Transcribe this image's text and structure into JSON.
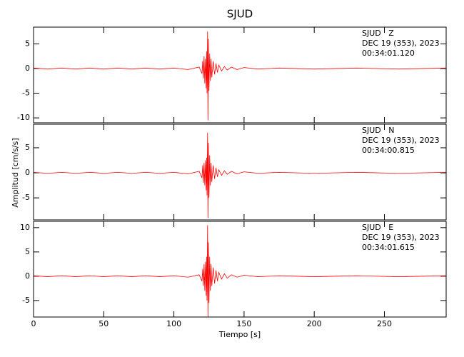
{
  "chart_data": [
    {
      "type": "line",
      "title": "SJUD",
      "annotations": [
        "SJUD   Z",
        "DEC 19 (353), 2023",
        "00:34:01.120"
      ],
      "x": [
        0,
        10,
        20,
        30,
        40,
        50,
        60,
        70,
        80,
        90,
        100,
        110,
        118,
        120,
        120.5,
        121,
        121.5,
        122,
        122.5,
        123,
        123.3,
        123.6,
        124,
        124.3,
        124.6,
        125,
        125.5,
        126,
        126.5,
        127,
        128,
        129,
        130,
        131,
        132,
        134,
        136,
        138,
        141,
        145,
        150,
        160,
        175,
        200,
        230,
        260,
        294
      ],
      "series": [
        {
          "color": "#ff0000",
          "values": [
            0.1,
            -0.1,
            0.1,
            -0.1,
            0.1,
            -0.1,
            0.1,
            -0.1,
            0.1,
            -0.1,
            0.1,
            -0.2,
            0.3,
            -1.0,
            1.5,
            -2.0,
            2.5,
            -3.0,
            2.0,
            -4.0,
            3.5,
            -5.0,
            7.5,
            -10.5,
            6.0,
            -4.5,
            3.0,
            -2.5,
            2.0,
            -1.8,
            1.5,
            -1.2,
            1.0,
            -0.8,
            0.7,
            -0.5,
            0.4,
            -0.3,
            0.3,
            -0.2,
            0.2,
            -0.1,
            0.1,
            -0.1,
            0.1,
            -0.1,
            0.1
          ]
        }
      ],
      "xlim": [
        0,
        294
      ],
      "xticks": [
        0,
        50,
        100,
        150,
        200,
        250
      ],
      "ylim": [
        -11,
        8.4
      ],
      "yticks": [
        -10,
        -5,
        0,
        5
      ]
    },
    {
      "type": "line",
      "ylabel": "Amplitud [cm/s/s]",
      "annotations": [
        "SJUD   N",
        "DEC 19 (353), 2023",
        "00:34:00.815"
      ],
      "x": [
        0,
        10,
        20,
        30,
        40,
        50,
        60,
        70,
        80,
        90,
        100,
        110,
        118,
        120,
        120.5,
        121,
        121.5,
        122,
        122.5,
        123,
        123.3,
        123.6,
        124,
        124.3,
        124.6,
        125,
        125.5,
        126,
        126.5,
        127,
        128,
        129,
        130,
        131,
        132,
        134,
        136,
        138,
        141,
        145,
        150,
        160,
        175,
        200,
        230,
        260,
        294
      ],
      "series": [
        {
          "color": "#ff0000",
          "values": [
            0.1,
            -0.1,
            0.1,
            -0.1,
            0.1,
            -0.1,
            0.1,
            -0.1,
            0.1,
            -0.1,
            0.1,
            -0.2,
            0.3,
            -1.0,
            1.5,
            -2.0,
            2.0,
            -2.5,
            2.5,
            -3.5,
            3.0,
            -4.5,
            8.0,
            -9.0,
            6.0,
            -5.0,
            3.5,
            -2.5,
            2.0,
            -1.8,
            1.5,
            -1.2,
            1.0,
            -0.8,
            0.6,
            -0.5,
            0.4,
            -0.3,
            0.3,
            -0.2,
            0.2,
            -0.1,
            0.1,
            -0.1,
            0.1,
            -0.1,
            0.1
          ]
        }
      ],
      "xlim": [
        0,
        294
      ],
      "xticks": [
        0,
        50,
        100,
        150,
        200,
        250
      ],
      "ylim": [
        -9.4,
        9.7
      ],
      "yticks": [
        -5,
        0,
        5
      ]
    },
    {
      "type": "line",
      "xlabel": "Tiempo [s]",
      "annotations": [
        "SJUD   E",
        "DEC 19 (353), 2023",
        "00:34:01.615"
      ],
      "x": [
        0,
        10,
        20,
        30,
        40,
        50,
        60,
        70,
        80,
        90,
        100,
        110,
        118,
        120,
        120.5,
        121,
        121.5,
        122,
        122.5,
        123,
        123.3,
        123.6,
        124,
        124.3,
        124.6,
        125,
        125.5,
        126,
        126.5,
        127,
        128,
        129,
        130,
        131,
        132,
        134,
        136,
        138,
        141,
        145,
        150,
        160,
        175,
        200,
        230,
        260,
        294
      ],
      "series": [
        {
          "color": "#ff0000",
          "values": [
            0.1,
            -0.1,
            0.1,
            -0.1,
            0.1,
            -0.1,
            0.1,
            -0.1,
            0.1,
            -0.1,
            0.1,
            -0.2,
            0.3,
            -1.0,
            1.5,
            -2.0,
            2.5,
            -3.0,
            3.0,
            -4.0,
            4.0,
            -5.0,
            10.5,
            -8.3,
            7.0,
            -5.5,
            4.0,
            -3.0,
            2.5,
            -2.0,
            1.8,
            -1.5,
            1.2,
            -1.0,
            0.8,
            -0.6,
            0.5,
            -0.4,
            0.3,
            -0.2,
            0.2,
            -0.1,
            0.1,
            -0.1,
            0.1,
            -0.1,
            0.1
          ]
        }
      ],
      "xlim": [
        0,
        294
      ],
      "xticks": [
        0,
        50,
        100,
        150,
        200,
        250
      ],
      "xtick_labels_shown": true,
      "ylim": [
        -8.4,
        11.3
      ],
      "yticks": [
        -5,
        0,
        5,
        10
      ]
    }
  ]
}
